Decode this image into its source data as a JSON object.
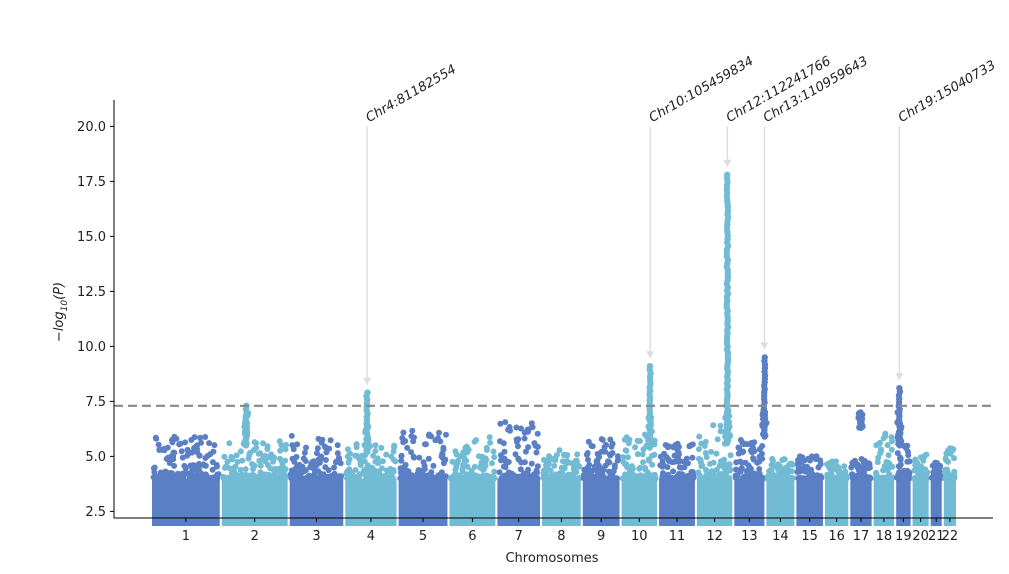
{
  "chart_data": {
    "type": "scatter",
    "title": "",
    "xlabel": "Chromosomes",
    "ylabel_main": "−log",
    "ylabel_sub": "10",
    "ylabel_tail": "(P)",
    "ylim": [
      2.2,
      21.2
    ],
    "yticks": [
      2.5,
      5.0,
      7.5,
      10.0,
      12.5,
      15.0,
      17.5,
      20.0
    ],
    "ytick_labels": [
      "2.5",
      "5.0",
      "7.5",
      "10.0",
      "12.5",
      "15.0",
      "17.5",
      "20.0"
    ],
    "threshold": 7.3,
    "colors": {
      "dark": "#5b7fc4",
      "light": "#72bbd4",
      "threshold": "#888888",
      "arrow": "#dddddd"
    },
    "chromosomes": [
      {
        "label": "1",
        "start": 0,
        "end": 248.9,
        "base_max": 5.9,
        "color": "dark"
      },
      {
        "label": "2",
        "start": 248.9,
        "end": 491.1,
        "base_max": 5.7,
        "color": "light"
      },
      {
        "label": "3",
        "start": 491.1,
        "end": 689.4,
        "base_max": 6.0,
        "color": "dark"
      },
      {
        "label": "4",
        "start": 689.4,
        "end": 879.6,
        "base_max": 5.7,
        "color": "light"
      },
      {
        "label": "5",
        "start": 879.6,
        "end": 1061.1,
        "base_max": 6.2,
        "color": "dark"
      },
      {
        "label": "6",
        "start": 1061.1,
        "end": 1232.0,
        "base_max": 5.9,
        "color": "light"
      },
      {
        "label": "7",
        "start": 1232.0,
        "end": 1391.4,
        "base_max": 6.6,
        "color": "dark"
      },
      {
        "label": "8",
        "start": 1391.4,
        "end": 1536.5,
        "base_max": 5.3,
        "color": "light"
      },
      {
        "label": "9",
        "start": 1536.5,
        "end": 1674.9,
        "base_max": 5.8,
        "color": "dark"
      },
      {
        "label": "10",
        "start": 1674.9,
        "end": 1808.7,
        "base_max": 6.0,
        "color": "light"
      },
      {
        "label": "11",
        "start": 1808.7,
        "end": 1943.8,
        "base_max": 5.6,
        "color": "dark"
      },
      {
        "label": "12",
        "start": 1943.8,
        "end": 2077.1,
        "base_max": 6.6,
        "color": "light"
      },
      {
        "label": "13",
        "start": 2077.1,
        "end": 2191.5,
        "base_max": 5.8,
        "color": "dark"
      },
      {
        "label": "14",
        "start": 2191.5,
        "end": 2298.5,
        "base_max": 4.9,
        "color": "light"
      },
      {
        "label": "15",
        "start": 2298.5,
        "end": 2400.5,
        "base_max": 5.1,
        "color": "dark"
      },
      {
        "label": "16",
        "start": 2400.5,
        "end": 2490.8,
        "base_max": 4.8,
        "color": "light"
      },
      {
        "label": "17",
        "start": 2490.8,
        "end": 2574.1,
        "base_max": 4.9,
        "color": "dark"
      },
      {
        "label": "18",
        "start": 2574.1,
        "end": 2654.5,
        "base_max": 6.1,
        "color": "light"
      },
      {
        "label": "19",
        "start": 2654.5,
        "end": 2713.1,
        "base_max": 5.5,
        "color": "dark"
      },
      {
        "label": "20",
        "start": 2713.1,
        "end": 2777.5,
        "base_max": 5.1,
        "color": "light"
      },
      {
        "label": "21",
        "start": 2777.5,
        "end": 2824.2,
        "base_max": 5.1,
        "color": "dark"
      },
      {
        "label": "22",
        "start": 2824.2,
        "end": 2875.0,
        "base_max": 5.5,
        "color": "light"
      }
    ],
    "peaks": [
      {
        "chrom": "2",
        "pos": 91,
        "max": 7.3,
        "min": 5.5
      },
      {
        "chrom": "4",
        "pos": 81.2,
        "max": 7.9,
        "min": 5.2
      },
      {
        "chrom": "10",
        "pos": 105.5,
        "max": 9.1,
        "min": 5.4
      },
      {
        "chrom": "12",
        "pos": 112.2,
        "max": 17.8,
        "min": 5.6
      },
      {
        "chrom": "13",
        "pos": 111.0,
        "max": 9.5,
        "min": 5.9
      },
      {
        "chrom": "17",
        "pos": 40,
        "max": 7.0,
        "min": 6.3
      },
      {
        "chrom": "19",
        "pos": 15.0,
        "max": 8.1,
        "min": 5.5
      }
    ],
    "annotations": [
      {
        "label": "Chr4:81182554",
        "chrom": "4",
        "pos": 81.2,
        "y": 7.9
      },
      {
        "label": "Chr10:105459834",
        "chrom": "10",
        "pos": 105.5,
        "y": 9.1
      },
      {
        "label": "Chr12:112241766",
        "chrom": "12",
        "pos": 112.2,
        "y": 17.8
      },
      {
        "label": "Chr13:110959643",
        "chrom": "13",
        "pos": 111.0,
        "y": 9.5
      },
      {
        "label": "Chr19:15040733",
        "chrom": "19",
        "pos": 15.0,
        "y": 8.1
      }
    ]
  }
}
